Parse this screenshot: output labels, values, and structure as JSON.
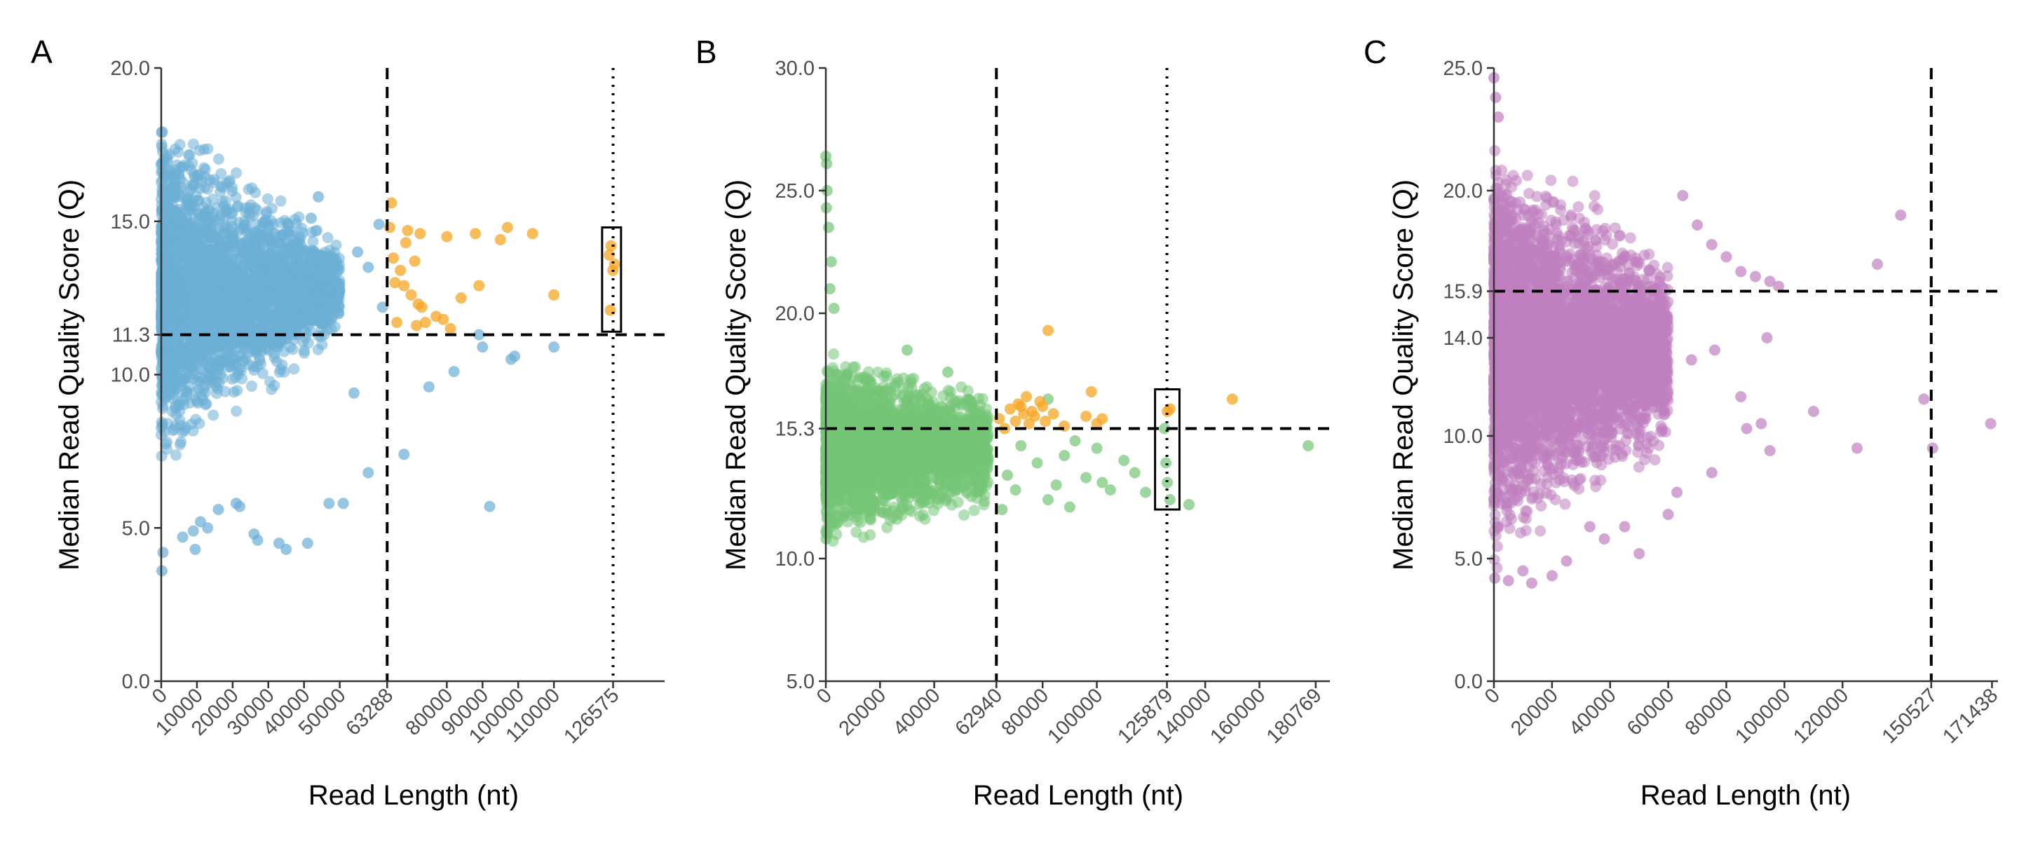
{
  "colors": {
    "background": "#ffffff",
    "axis": "#333333",
    "tick_label": "#4d4d4d",
    "reference_line": "#000000",
    "highlight_point": "#F5A623"
  },
  "chart_data": [
    {
      "panel": "A",
      "type": "scatter",
      "xlabel": "Read Length (nt)",
      "ylabel": "Median Read Quality Score (Q)",
      "xlim": [
        0,
        141000
      ],
      "ylim": [
        0,
        20
      ],
      "x_ticks": [
        0,
        10000,
        20000,
        30000,
        40000,
        50000,
        63288,
        80000,
        90000,
        100000,
        110000,
        126575
      ],
      "x_tick_labels": [
        "0",
        "10000",
        "20000",
        "30000",
        "40000",
        "50000",
        "63288",
        "80000",
        "90000",
        "100000",
        "110000",
        "126575"
      ],
      "y_ticks": [
        0,
        5,
        10,
        11.3,
        15,
        20
      ],
      "y_tick_labels": [
        "0.0",
        "5.0",
        "10.0",
        "11.3",
        "15.0",
        "20.0"
      ],
      "point_color": "#6BAED6",
      "highlight_color": "#F5A623",
      "hline_dashed": 11.3,
      "vline_dashed": 63288,
      "vline_dotted": 126575,
      "boxed_region": {
        "x": [
          123500,
          128800
        ],
        "y": [
          11.4,
          14.8
        ]
      },
      "grid": false,
      "dense_cloud": {
        "x_max": 50000,
        "q_center": 12.8,
        "q_spread_at_0": 6.5,
        "q_spread_at_max": 1.7,
        "n": 3000
      },
      "series": [
        {
          "values": [
            [
              100,
              17.9
            ],
            [
              300,
              16.9
            ],
            [
              200,
              3.6
            ],
            [
              500,
              4.2
            ],
            [
              1000,
              16.5
            ],
            [
              6000,
              4.7
            ],
            [
              9000,
              4.9
            ],
            [
              9500,
              4.3
            ],
            [
              11000,
              5.2
            ],
            [
              13000,
              5.0
            ],
            [
              16000,
              5.6
            ],
            [
              21000,
              5.8
            ],
            [
              22000,
              5.7
            ],
            [
              26000,
              4.8
            ],
            [
              27000,
              4.6
            ],
            [
              33000,
              4.5
            ],
            [
              35000,
              4.3
            ],
            [
              41000,
              4.5
            ],
            [
              47000,
              5.8
            ],
            [
              51000,
              5.8
            ],
            [
              58000,
              6.8
            ],
            [
              68000,
              7.4
            ],
            [
              75000,
              9.6
            ],
            [
              82000,
              10.1
            ],
            [
              89000,
              11.3
            ],
            [
              90000,
              10.9
            ],
            [
              92000,
              5.7
            ],
            [
              98000,
              10.5
            ],
            [
              99000,
              10.6
            ],
            [
              110000,
              10.9
            ],
            [
              42000,
              15.1
            ],
            [
              44000,
              15.8
            ],
            [
              55000,
              14.0
            ],
            [
              61000,
              14.9
            ],
            [
              58000,
              13.5
            ],
            [
              62000,
              12.2
            ],
            [
              54000,
              9.4
            ]
          ]
        }
      ],
      "highlighted": [
        {
          "values": [
            [
              64000,
              14.8
            ],
            [
              64500,
              15.6
            ],
            [
              65000,
              13.8
            ],
            [
              65500,
              13.0
            ],
            [
              66000,
              11.7
            ],
            [
              67000,
              13.4
            ],
            [
              68000,
              12.9
            ],
            [
              68500,
              14.3
            ],
            [
              69000,
              14.7
            ],
            [
              70000,
              12.6
            ],
            [
              71000,
              13.7
            ],
            [
              71500,
              11.6
            ],
            [
              72000,
              12.3
            ],
            [
              72500,
              14.6
            ],
            [
              73000,
              12.2
            ],
            [
              74000,
              11.7
            ],
            [
              77000,
              11.9
            ],
            [
              79000,
              11.8
            ],
            [
              80000,
              14.5
            ],
            [
              81000,
              11.5
            ],
            [
              84000,
              12.5
            ],
            [
              88000,
              14.6
            ],
            [
              89000,
              12.9
            ],
            [
              95000,
              14.4
            ],
            [
              97000,
              14.8
            ],
            [
              104000,
              14.6
            ],
            [
              110000,
              12.6
            ],
            [
              125500,
              13.9
            ],
            [
              126000,
              14.2
            ],
            [
              126500,
              13.4
            ],
            [
              127000,
              13.6
            ],
            [
              125800,
              12.1
            ]
          ]
        }
      ]
    },
    {
      "panel": "B",
      "type": "scatter",
      "xlabel": "Read Length (nt)",
      "ylabel": "Median Read Quality Score (Q)",
      "xlim": [
        0,
        186000
      ],
      "ylim": [
        5,
        30
      ],
      "x_ticks": [
        0,
        20000,
        40000,
        62940,
        80000,
        100000,
        125879,
        140000,
        160000,
        180769
      ],
      "x_tick_labels": [
        "0",
        "20000",
        "40000",
        "62940",
        "80000",
        "100000",
        "125879",
        "140000",
        "160000",
        "180769"
      ],
      "y_ticks": [
        5,
        10,
        15.3,
        20,
        25,
        30
      ],
      "y_tick_labels": [
        "5.0",
        "10.0",
        "15.3",
        "20.0",
        "25.0",
        "30.0"
      ],
      "point_color": "#74C476",
      "highlight_color": "#F5A623",
      "hline_dashed": 15.3,
      "vline_dashed": 62940,
      "vline_dotted": 125879,
      "boxed_region": {
        "x": [
          121500,
          130500
        ],
        "y": [
          12.0,
          16.9
        ]
      },
      "grid": false,
      "dense_cloud": {
        "x_max": 60000,
        "q_center": 14.5,
        "q_spread_at_0": 4.2,
        "q_spread_at_max": 2.6,
        "n": 3000
      },
      "series": [
        {
          "values": [
            [
              0,
              26.4
            ],
            [
              300,
              26.1
            ],
            [
              500,
              25.0
            ],
            [
              200,
              24.3
            ],
            [
              1000,
              23.5
            ],
            [
              2000,
              22.1
            ],
            [
              1500,
              21.0
            ],
            [
              3000,
              20.2
            ],
            [
              100,
              10.8
            ],
            [
              500,
              11.0
            ],
            [
              65000,
              12.0
            ],
            [
              67000,
              13.4
            ],
            [
              70000,
              12.8
            ],
            [
              72000,
              14.6
            ],
            [
              78000,
              13.9
            ],
            [
              82000,
              12.4
            ],
            [
              85000,
              13.0
            ],
            [
              88000,
              14.2
            ],
            [
              90000,
              12.1
            ],
            [
              92000,
              14.8
            ],
            [
              96000,
              13.3
            ],
            [
              100000,
              14.5
            ],
            [
              102000,
              13.1
            ],
            [
              105000,
              12.8
            ],
            [
              110000,
              14.0
            ],
            [
              114000,
              13.5
            ],
            [
              118000,
              12.7
            ],
            [
              125000,
              15.3
            ],
            [
              125500,
              13.9
            ],
            [
              126000,
              13.1
            ],
            [
              127000,
              12.4
            ],
            [
              134000,
              12.2
            ],
            [
              178000,
              14.6
            ],
            [
              82000,
              16.5
            ],
            [
              45000,
              17.6
            ],
            [
              30000,
              18.5
            ]
          ]
        }
      ],
      "highlighted": [
        {
          "values": [
            [
              64000,
              15.7
            ],
            [
              66000,
              15.3
            ],
            [
              68000,
              16.1
            ],
            [
              70000,
              15.6
            ],
            [
              71000,
              16.3
            ],
            [
              72000,
              16.2
            ],
            [
              73000,
              15.9
            ],
            [
              74000,
              16.6
            ],
            [
              75000,
              15.5
            ],
            [
              76000,
              16.0
            ],
            [
              77000,
              15.8
            ],
            [
              79000,
              16.4
            ],
            [
              80000,
              16.2
            ],
            [
              81000,
              15.6
            ],
            [
              82000,
              19.3
            ],
            [
              84000,
              15.9
            ],
            [
              88000,
              15.4
            ],
            [
              96000,
              15.8
            ],
            [
              98000,
              16.8
            ],
            [
              100000,
              15.5
            ],
            [
              102000,
              15.7
            ],
            [
              126000,
              16.0
            ],
            [
              127000,
              16.1
            ],
            [
              150000,
              16.5
            ]
          ]
        }
      ]
    },
    {
      "panel": "C",
      "type": "scatter",
      "xlabel": "Read Length (nt)",
      "ylabel": "Median Read Quality Score (Q)",
      "xlim": [
        0,
        173500
      ],
      "ylim": [
        0,
        25
      ],
      "x_ticks": [
        0,
        20000,
        40000,
        60000,
        80000,
        100000,
        120000,
        150527,
        171438
      ],
      "x_tick_labels": [
        "0",
        "20000",
        "40000",
        "60000",
        "80000",
        "100000",
        "120000",
        "150527",
        "171438"
      ],
      "y_ticks": [
        0,
        5,
        10,
        14,
        15.9,
        20,
        25
      ],
      "y_tick_labels": [
        "0.0",
        "5.0",
        "10.0",
        "14.0",
        "15.9",
        "20.0",
        "25.0"
      ],
      "point_color": "#C07FC0",
      "hline_dashed": 15.9,
      "vline_dashed": 150527,
      "grid": false,
      "dense_cloud": {
        "x_max": 60000,
        "q_center": 13.5,
        "q_spread_at_0": 9.5,
        "q_spread_at_max": 4.5,
        "n": 4000
      },
      "series": [
        {
          "values": [
            [
              0,
              24.6
            ],
            [
              600,
              23.8
            ],
            [
              1500,
              23.0
            ],
            [
              300,
              4.2
            ],
            [
              65000,
              19.8
            ],
            [
              70000,
              18.6
            ],
            [
              75000,
              17.8
            ],
            [
              80000,
              17.3
            ],
            [
              85000,
              16.7
            ],
            [
              90000,
              16.5
            ],
            [
              95000,
              16.3
            ],
            [
              98000,
              16.1
            ],
            [
              140000,
              19.0
            ],
            [
              132000,
              17.0
            ],
            [
              148000,
              11.5
            ],
            [
              151000,
              9.5
            ],
            [
              171000,
              10.5
            ],
            [
              125000,
              9.5
            ],
            [
              110000,
              11.0
            ],
            [
              95000,
              9.4
            ],
            [
              94000,
              14.0
            ],
            [
              87000,
              10.3
            ],
            [
              75000,
              8.5
            ],
            [
              63000,
              7.7
            ],
            [
              60000,
              6.8
            ],
            [
              50000,
              5.2
            ],
            [
              45000,
              6.3
            ],
            [
              38000,
              5.8
            ],
            [
              33000,
              6.3
            ],
            [
              25000,
              4.9
            ],
            [
              20000,
              4.3
            ],
            [
              13000,
              4.0
            ],
            [
              10000,
              4.5
            ],
            [
              5000,
              4.1
            ],
            [
              56000,
              12.7
            ],
            [
              68000,
              13.1
            ],
            [
              76000,
              13.5
            ],
            [
              85000,
              11.6
            ],
            [
              92000,
              10.5
            ]
          ]
        }
      ]
    }
  ],
  "panels": [
    {
      "letter": "A"
    },
    {
      "letter": "B"
    },
    {
      "letter": "C"
    }
  ]
}
